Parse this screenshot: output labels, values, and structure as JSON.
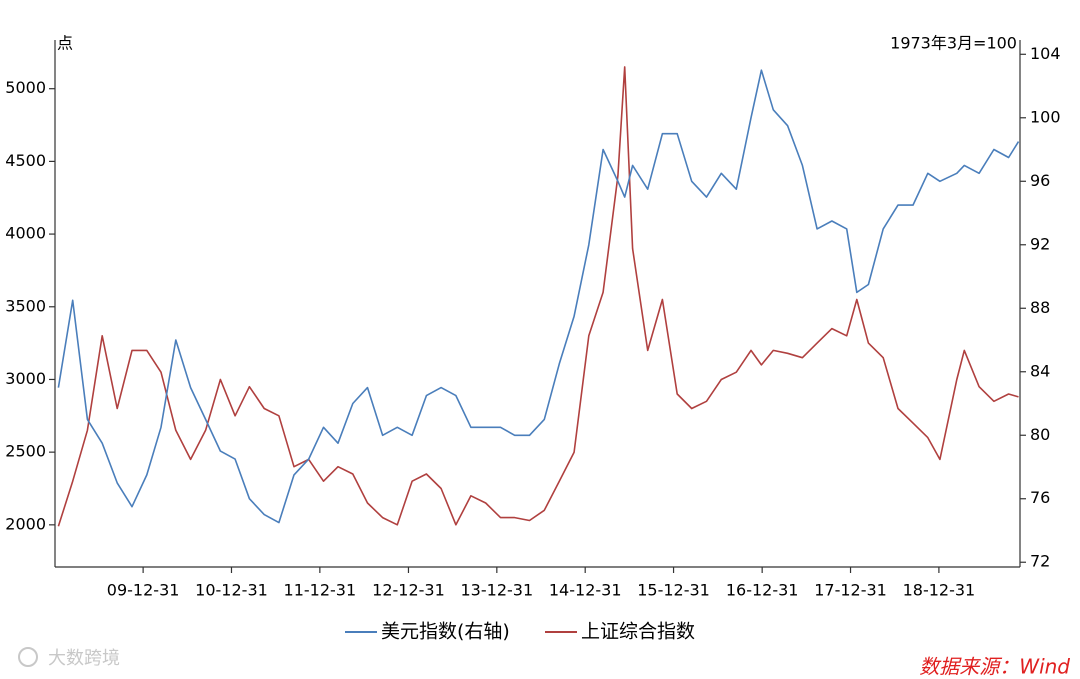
{
  "chart_data": {
    "type": "line",
    "y_label": "点",
    "y2_label": "1973年3月=100",
    "x": [
      "09-01-15",
      "09-03-15",
      "09-05-15",
      "09-07-15",
      "09-09-15",
      "09-11-15",
      "10-01-15",
      "10-03-15",
      "10-05-15",
      "10-07-15",
      "10-09-15",
      "10-11-15",
      "11-01-15",
      "11-03-15",
      "11-05-15",
      "11-07-15",
      "11-09-15",
      "11-11-15",
      "12-01-15",
      "12-03-15",
      "12-05-15",
      "12-07-15",
      "12-09-15",
      "12-11-15",
      "13-01-15",
      "13-03-15",
      "13-05-15",
      "13-07-15",
      "13-09-15",
      "13-11-15",
      "14-01-15",
      "14-03-15",
      "14-05-15",
      "14-07-15",
      "14-09-15",
      "14-11-15",
      "15-01-15",
      "15-03-15",
      "15-05-15",
      "15-06-12",
      "15-07-15",
      "15-09-15",
      "15-11-15",
      "16-01-15",
      "16-03-15",
      "16-05-15",
      "16-07-15",
      "16-09-15",
      "16-11-15",
      "16-12-28",
      "17-02-15",
      "17-04-15",
      "17-06-15",
      "17-08-15",
      "17-10-15",
      "17-12-15",
      "18-01-26",
      "18-03-15",
      "18-05-15",
      "18-07-15",
      "18-09-15",
      "18-11-15",
      "19-01-04",
      "19-03-15",
      "19-04-15",
      "19-06-15",
      "19-08-15",
      "19-10-15",
      "19-11-25"
    ],
    "series": [
      {
        "name": "美元指数(右轴)",
        "color": "#4a7ebb",
        "axis": "y2",
        "values": [
          83,
          88.5,
          81,
          79.5,
          77,
          75.5,
          77.5,
          80.5,
          86,
          83,
          81,
          79,
          78.5,
          76,
          75,
          74.5,
          77.5,
          78.5,
          80.5,
          79.5,
          82,
          83,
          80,
          80.5,
          80,
          82.5,
          83,
          82.5,
          80.5,
          80.5,
          80.5,
          80,
          80,
          81,
          84.5,
          87.5,
          92,
          98,
          96,
          95,
          97,
          95.5,
          99,
          99,
          96,
          95,
          96.5,
          95.5,
          100,
          103,
          100.5,
          99.5,
          97,
          93,
          93.5,
          93,
          89,
          89.5,
          93,
          94.5,
          94.5,
          96.5,
          96,
          96.5,
          97,
          96.5,
          98,
          97.5,
          98.5
        ]
      },
      {
        "name": "上证综合指数",
        "color": "#b0403f",
        "values": [
          1990,
          2300,
          2650,
          3300,
          2800,
          3200,
          3200,
          3050,
          2650,
          2450,
          2650,
          3000,
          2750,
          2950,
          2800,
          2750,
          2400,
          2450,
          2300,
          2400,
          2350,
          2150,
          2050,
          2000,
          2300,
          2350,
          2250,
          2000,
          2200,
          2150,
          2050,
          2050,
          2030,
          2100,
          2300,
          2500,
          3300,
          3600,
          4400,
          5150,
          3900,
          3200,
          3550,
          2900,
          2800,
          2850,
          3000,
          3050,
          3200,
          3100,
          3200,
          3180,
          3150,
          3250,
          3350,
          3300,
          3550,
          3250,
          3150,
          2800,
          2700,
          2600,
          2450,
          3000,
          3200,
          2950,
          2850,
          2900,
          2880
        ]
      }
    ],
    "xlim": [
      "09-01-01",
      "19-12-01"
    ],
    "xticks": [
      "09-12-31",
      "10-12-31",
      "11-12-31",
      "12-12-31",
      "13-12-31",
      "14-12-31",
      "15-12-31",
      "16-12-31",
      "17-12-31",
      "18-12-31"
    ],
    "ylim": [
      1710,
      5335
    ],
    "yticks": [
      2000,
      2500,
      3000,
      3500,
      4000,
      4500,
      5000
    ],
    "y2lim": [
      71.7,
      104.9
    ],
    "y2ticks": [
      72,
      76,
      80,
      84,
      88,
      92,
      96,
      100,
      104
    ],
    "source": "数据来源：Wind",
    "watermark": "大数跨境"
  }
}
